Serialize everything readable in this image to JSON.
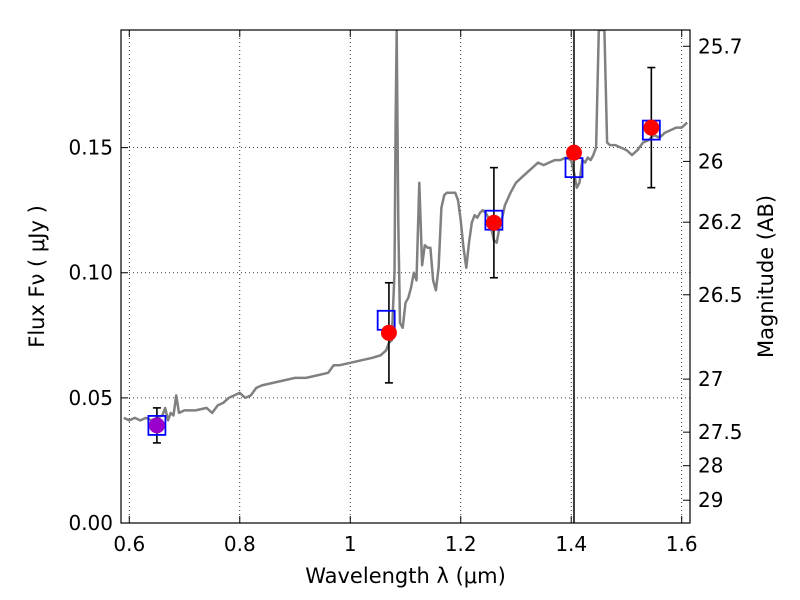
{
  "chart_data": {
    "type": "scatter",
    "xlabel": "Wavelength  λ (μm)",
    "ylabel": "Flux  Fν  ( μJy )",
    "y2label": "Magnitude (AB)",
    "xlim": [
      0.585,
      1.615
    ],
    "ylim": [
      0.0,
      0.197
    ],
    "x_ticks": [
      0.6,
      0.8,
      1.0,
      1.2,
      1.4,
      1.6
    ],
    "x_tick_labels": [
      "0.6",
      "0.8",
      "1",
      "1.2",
      "1.4",
      "1.6"
    ],
    "y_ticks": [
      0.0,
      0.05,
      0.1,
      0.15
    ],
    "y_tick_labels": [
      "0.00",
      "0.05",
      "0.10",
      "0.15"
    ],
    "y2_ticks": [
      {
        "label": "25.7",
        "flux": 0.1905
      },
      {
        "label": "26",
        "flux": 0.1445
      },
      {
        "label": "26.2",
        "flux": 0.1202
      },
      {
        "label": "26.5",
        "flux": 0.0912
      },
      {
        "label": "27",
        "flux": 0.0575
      },
      {
        "label": "27.5",
        "flux": 0.0363
      },
      {
        "label": "28",
        "flux": 0.0229
      },
      {
        "label": "29",
        "flux": 0.0091
      }
    ],
    "grid": true,
    "vertical_line_x": 1.405,
    "model_spectrum": {
      "color": "#808080",
      "points": [
        [
          0.59,
          0.042
        ],
        [
          0.6,
          0.041
        ],
        [
          0.61,
          0.042
        ],
        [
          0.62,
          0.041
        ],
        [
          0.63,
          0.042
        ],
        [
          0.64,
          0.041
        ],
        [
          0.65,
          0.042
        ],
        [
          0.66,
          0.043
        ],
        [
          0.665,
          0.046
        ],
        [
          0.67,
          0.041
        ],
        [
          0.675,
          0.044
        ],
        [
          0.68,
          0.043
        ],
        [
          0.685,
          0.051
        ],
        [
          0.69,
          0.044
        ],
        [
          0.7,
          0.045
        ],
        [
          0.72,
          0.045
        ],
        [
          0.74,
          0.046
        ],
        [
          0.75,
          0.044
        ],
        [
          0.76,
          0.047
        ],
        [
          0.77,
          0.048
        ],
        [
          0.78,
          0.05
        ],
        [
          0.79,
          0.051
        ],
        [
          0.8,
          0.052
        ],
        [
          0.81,
          0.05
        ],
        [
          0.82,
          0.051
        ],
        [
          0.83,
          0.054
        ],
        [
          0.84,
          0.055
        ],
        [
          0.86,
          0.056
        ],
        [
          0.88,
          0.057
        ],
        [
          0.9,
          0.058
        ],
        [
          0.92,
          0.058
        ],
        [
          0.94,
          0.059
        ],
        [
          0.96,
          0.06
        ],
        [
          0.97,
          0.063
        ],
        [
          0.98,
          0.063
        ],
        [
          1.0,
          0.064
        ],
        [
          1.02,
          0.065
        ],
        [
          1.04,
          0.066
        ],
        [
          1.055,
          0.067
        ],
        [
          1.065,
          0.069
        ],
        [
          1.07,
          0.072
        ],
        [
          1.075,
          0.073
        ],
        [
          1.08,
          0.1
        ],
        [
          1.082,
          0.16
        ],
        [
          1.084,
          0.197
        ],
        [
          1.087,
          0.12
        ],
        [
          1.09,
          0.08
        ],
        [
          1.095,
          0.078
        ],
        [
          1.1,
          0.088
        ],
        [
          1.105,
          0.09
        ],
        [
          1.11,
          0.094
        ],
        [
          1.115,
          0.1
        ],
        [
          1.12,
          0.097
        ],
        [
          1.125,
          0.136
        ],
        [
          1.13,
          0.103
        ],
        [
          1.135,
          0.111
        ],
        [
          1.14,
          0.11
        ],
        [
          1.145,
          0.11
        ],
        [
          1.15,
          0.097
        ],
        [
          1.155,
          0.093
        ],
        [
          1.16,
          0.102
        ],
        [
          1.165,
          0.126
        ],
        [
          1.17,
          0.131
        ],
        [
          1.175,
          0.132
        ],
        [
          1.18,
          0.132
        ],
        [
          1.19,
          0.132
        ],
        [
          1.195,
          0.129
        ],
        [
          1.2,
          0.121
        ],
        [
          1.205,
          0.11
        ],
        [
          1.21,
          0.102
        ],
        [
          1.215,
          0.112
        ],
        [
          1.22,
          0.12
        ],
        [
          1.225,
          0.123
        ],
        [
          1.23,
          0.122
        ],
        [
          1.235,
          0.124
        ],
        [
          1.24,
          0.125
        ],
        [
          1.245,
          0.124
        ],
        [
          1.25,
          0.122
        ],
        [
          1.255,
          0.118
        ],
        [
          1.26,
          0.113
        ],
        [
          1.265,
          0.112
        ],
        [
          1.27,
          0.118
        ],
        [
          1.275,
          0.122
        ],
        [
          1.28,
          0.127
        ],
        [
          1.29,
          0.132
        ],
        [
          1.3,
          0.136
        ],
        [
          1.31,
          0.138
        ],
        [
          1.32,
          0.14
        ],
        [
          1.33,
          0.142
        ],
        [
          1.34,
          0.144
        ],
        [
          1.35,
          0.143
        ],
        [
          1.36,
          0.144
        ],
        [
          1.37,
          0.145
        ],
        [
          1.38,
          0.145
        ],
        [
          1.39,
          0.146
        ],
        [
          1.4,
          0.145
        ],
        [
          1.405,
          0.14
        ],
        [
          1.41,
          0.134
        ],
        [
          1.415,
          0.136
        ],
        [
          1.42,
          0.145
        ],
        [
          1.425,
          0.144
        ],
        [
          1.43,
          0.146
        ],
        [
          1.435,
          0.145
        ],
        [
          1.44,
          0.147
        ],
        [
          1.445,
          0.15
        ],
        [
          1.45,
          0.197
        ],
        [
          1.455,
          0.197
        ],
        [
          1.46,
          0.197
        ],
        [
          1.465,
          0.152
        ],
        [
          1.47,
          0.151
        ],
        [
          1.48,
          0.151
        ],
        [
          1.49,
          0.15
        ],
        [
          1.5,
          0.149
        ],
        [
          1.51,
          0.147
        ],
        [
          1.52,
          0.149
        ],
        [
          1.53,
          0.152
        ],
        [
          1.54,
          0.153
        ],
        [
          1.55,
          0.155
        ],
        [
          1.56,
          0.154
        ],
        [
          1.57,
          0.156
        ],
        [
          1.58,
          0.157
        ],
        [
          1.59,
          0.158
        ],
        [
          1.6,
          0.158
        ],
        [
          1.61,
          0.16
        ]
      ]
    },
    "model_photometry": {
      "marker": "open-square",
      "color": "#0000ff",
      "points": [
        [
          0.65,
          0.039
        ],
        [
          1.065,
          0.081
        ],
        [
          1.26,
          0.121
        ],
        [
          1.405,
          0.142
        ],
        [
          1.545,
          0.157
        ]
      ]
    },
    "observed": {
      "marker": "filled-circle",
      "color": "#ff0000",
      "first_point_color": "#9900cc",
      "points": [
        {
          "x": 0.65,
          "y": 0.039,
          "err": 0.007
        },
        {
          "x": 1.07,
          "y": 0.076,
          "err": 0.02
        },
        {
          "x": 1.26,
          "y": 0.12,
          "err": 0.022
        },
        {
          "x": 1.405,
          "y": 0.148,
          "err": null
        },
        {
          "x": 1.545,
          "y": 0.158,
          "err": 0.024
        }
      ]
    }
  }
}
